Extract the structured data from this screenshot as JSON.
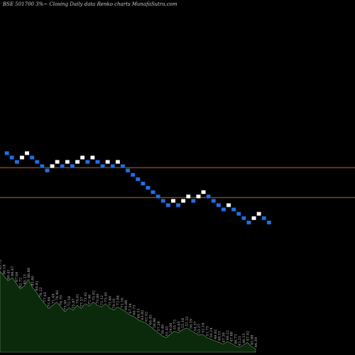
{
  "header": {
    "title": "BSE 501700  3%~  Closing Daily data Renko  charts MunafaSutra.com"
  },
  "colors": {
    "background": "#000000",
    "up_brick": "#ffffff",
    "down_brick": "#1f6fe6",
    "reference_line": "#c8641e",
    "volume_fill": "#0b2a0b",
    "volume_stroke": "#6f9a6f"
  },
  "chart_data": {
    "type": "renko",
    "title": "BSE 501700  3%~  Closing Daily data Renko  charts MunafaSutra.com",
    "brick_size_label": "3%",
    "bricks": [
      {
        "dir": "down",
        "level": 0
      },
      {
        "dir": "down",
        "level": -1
      },
      {
        "dir": "down",
        "level": -2
      },
      {
        "dir": "up",
        "level": -1
      },
      {
        "dir": "up",
        "level": 0
      },
      {
        "dir": "down",
        "level": -1
      },
      {
        "dir": "down",
        "level": -2
      },
      {
        "dir": "down",
        "level": -3
      },
      {
        "dir": "down",
        "level": -4
      },
      {
        "dir": "up",
        "level": -3
      },
      {
        "dir": "up",
        "level": -2
      },
      {
        "dir": "down",
        "level": -3
      },
      {
        "dir": "up",
        "level": -2
      },
      {
        "dir": "down",
        "level": -3
      },
      {
        "dir": "up",
        "level": -2
      },
      {
        "dir": "up",
        "level": -1
      },
      {
        "dir": "down",
        "level": -2
      },
      {
        "dir": "up",
        "level": -1
      },
      {
        "dir": "down",
        "level": -2
      },
      {
        "dir": "down",
        "level": -3
      },
      {
        "dir": "up",
        "level": -2
      },
      {
        "dir": "down",
        "level": -3
      },
      {
        "dir": "up",
        "level": -2
      },
      {
        "dir": "down",
        "level": -3
      },
      {
        "dir": "down",
        "level": -4
      },
      {
        "dir": "down",
        "level": -5
      },
      {
        "dir": "down",
        "level": -6
      },
      {
        "dir": "down",
        "level": -7
      },
      {
        "dir": "down",
        "level": -8
      },
      {
        "dir": "down",
        "level": -9
      },
      {
        "dir": "down",
        "level": -10
      },
      {
        "dir": "down",
        "level": -11
      },
      {
        "dir": "down",
        "level": -12
      },
      {
        "dir": "up",
        "level": -11
      },
      {
        "dir": "down",
        "level": -12
      },
      {
        "dir": "up",
        "level": -11
      },
      {
        "dir": "up",
        "level": -10
      },
      {
        "dir": "down",
        "level": -11
      },
      {
        "dir": "up",
        "level": -10
      },
      {
        "dir": "up",
        "level": -9
      },
      {
        "dir": "down",
        "level": -10
      },
      {
        "dir": "down",
        "level": -11
      },
      {
        "dir": "down",
        "level": -12
      },
      {
        "dir": "down",
        "level": -13
      },
      {
        "dir": "up",
        "level": -12
      },
      {
        "dir": "down",
        "level": -13
      },
      {
        "dir": "down",
        "level": -14
      },
      {
        "dir": "down",
        "level": -15
      },
      {
        "dir": "down",
        "level": -16
      },
      {
        "dir": "up",
        "level": -15
      },
      {
        "dir": "up",
        "level": -14
      },
      {
        "dir": "down",
        "level": -15
      },
      {
        "dir": "down",
        "level": -16
      }
    ],
    "reference_lines": [
      {
        "level": -3.3,
        "label": ""
      },
      {
        "level": -10.2,
        "label": ""
      }
    ],
    "volume": [
      {
        "value": 100,
        "label": "95.75"
      },
      {
        "value": 94,
        "label": "90.18"
      },
      {
        "value": 88,
        "label": "90.41"
      },
      {
        "value": 92,
        "label": "88.47"
      },
      {
        "value": 85,
        "label": "87.64"
      },
      {
        "value": 78,
        "label": "82.72"
      },
      {
        "value": 82,
        "label": "85.23"
      },
      {
        "value": 90,
        "label": "86.88"
      },
      {
        "value": 80,
        "label": "83.80"
      },
      {
        "value": 74,
        "label": "80.81"
      },
      {
        "value": 66,
        "label": "78.22"
      },
      {
        "value": 60,
        "label": "77.63"
      },
      {
        "value": 54,
        "label": "75.84"
      },
      {
        "value": 58,
        "label": "71.49"
      },
      {
        "value": 62,
        "label": "74.46"
      },
      {
        "value": 56,
        "label": "76.70"
      },
      {
        "value": 50,
        "label": "73.30"
      },
      {
        "value": 55,
        "label": "72.58"
      },
      {
        "value": 52,
        "label": "75.87"
      },
      {
        "value": 58,
        "label": "74.61"
      },
      {
        "value": 54,
        "label": "77.37"
      },
      {
        "value": 60,
        "label": "73.42"
      },
      {
        "value": 57,
        "label": "72.46"
      },
      {
        "value": 62,
        "label": "75.92"
      },
      {
        "value": 58,
        "label": "73.80"
      },
      {
        "value": 56,
        "label": "72.12"
      },
      {
        "value": 60,
        "label": "73.45"
      },
      {
        "value": 55,
        "label": "71.80"
      },
      {
        "value": 52,
        "label": "70.10"
      },
      {
        "value": 56,
        "label": "72.84"
      },
      {
        "value": 53,
        "label": "71.16"
      },
      {
        "value": 50,
        "label": "69.88"
      },
      {
        "value": 46,
        "label": "67.34"
      },
      {
        "value": 44,
        "label": "66.73"
      },
      {
        "value": 40,
        "label": "64.51"
      },
      {
        "value": 38,
        "label": "63.82"
      },
      {
        "value": 36,
        "label": "62.02"
      },
      {
        "value": 32,
        "label": "60.45"
      },
      {
        "value": 28,
        "label": "58.86"
      },
      {
        "value": 24,
        "label": "57.28"
      },
      {
        "value": 20,
        "label": "56.46"
      },
      {
        "value": 18,
        "label": "55.43"
      },
      {
        "value": 22,
        "label": "54.06"
      },
      {
        "value": 26,
        "label": "55.73"
      },
      {
        "value": 24,
        "label": "56.65"
      },
      {
        "value": 28,
        "label": "55.18"
      },
      {
        "value": 30,
        "label": "57.32"
      },
      {
        "value": 27,
        "label": "56.19"
      },
      {
        "value": 24,
        "label": "54.37"
      },
      {
        "value": 21,
        "label": "53.27"
      },
      {
        "value": 22,
        "label": "52.18"
      },
      {
        "value": 18,
        "label": "51.73"
      },
      {
        "value": 16,
        "label": "50.24"
      },
      {
        "value": 14,
        "label": "49.82"
      },
      {
        "value": 12,
        "label": "48.51"
      },
      {
        "value": 10,
        "label": "47.39"
      },
      {
        "value": 13,
        "label": "48.22"
      },
      {
        "value": 11,
        "label": "47.68"
      },
      {
        "value": 8,
        "label": "46.73"
      },
      {
        "value": 6,
        "label": "45.21"
      },
      {
        "value": 9,
        "label": "46.15"
      },
      {
        "value": 12,
        "label": "47.02"
      },
      {
        "value": 7,
        "label": "45.88"
      },
      {
        "value": 4,
        "label": "44.39"
      }
    ]
  }
}
